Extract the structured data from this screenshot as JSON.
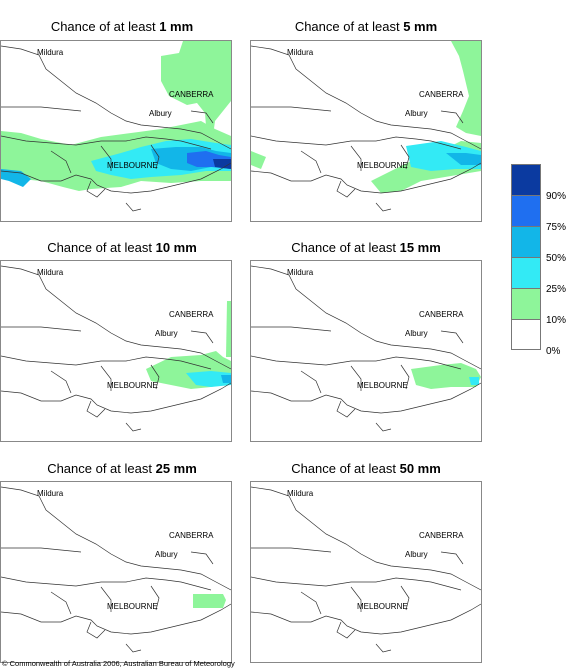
{
  "panels": [
    {
      "prefix": "Chance of at least ",
      "amount": "1 mm"
    },
    {
      "prefix": "Chance of at least ",
      "amount": "5 mm"
    },
    {
      "prefix": "Chance of at least ",
      "amount": "10 mm"
    },
    {
      "prefix": "Chance of at least ",
      "amount": "15 mm"
    },
    {
      "prefix": "Chance of at least ",
      "amount": "25 mm"
    },
    {
      "prefix": "Chance of at least ",
      "amount": "50 mm"
    }
  ],
  "cities": {
    "mildura": "Mildura",
    "canberra": "CANBERRA",
    "albury": "Albury",
    "melbourne": "MELBOURNE"
  },
  "legend": {
    "labels": [
      "90%",
      "75%",
      "50%",
      "25%",
      "10%",
      "0%"
    ],
    "colors": [
      "#0b3aa0",
      "#1f6ff0",
      "#12b6e8",
      "#33eaf5",
      "#8ef59a",
      "#ffffff"
    ]
  },
  "footer": "© Commonwealth of Australia 2006, Australian Bureau of Meteorology"
}
